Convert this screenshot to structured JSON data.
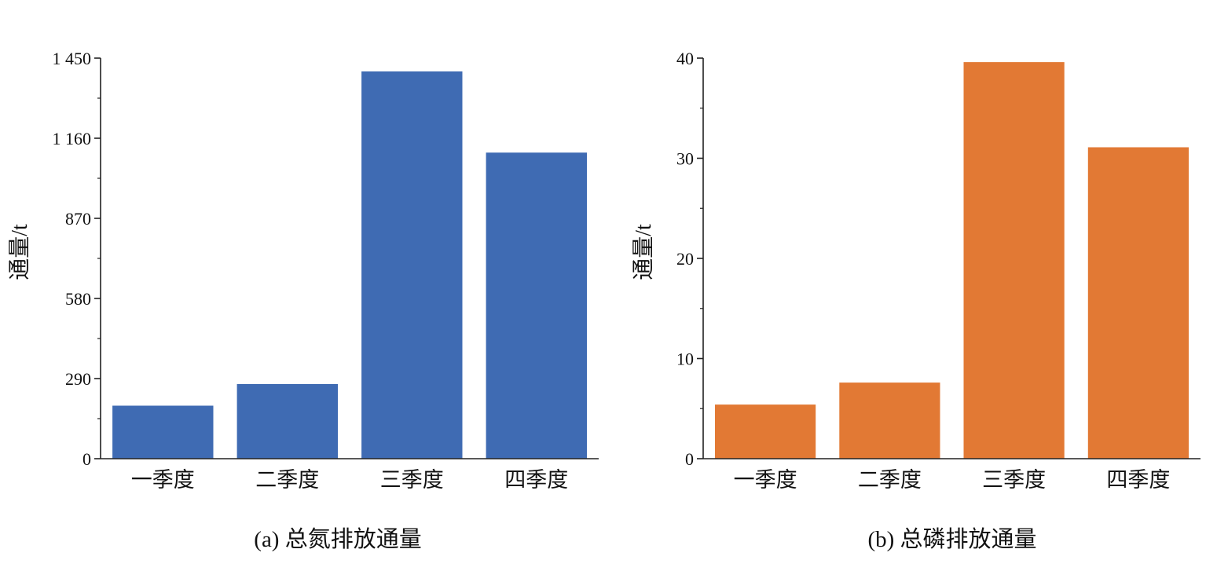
{
  "chart_data": [
    {
      "type": "bar",
      "title": "(a) 总氮排放通量",
      "ylabel": "通量/t",
      "xlabel": "",
      "categories": [
        "一季度",
        "二季度",
        "三季度",
        "四季度"
      ],
      "values": [
        192,
        270,
        1402,
        1108
      ],
      "ylim": [
        0,
        1450
      ],
      "yticks": [
        0,
        290,
        580,
        870,
        1160,
        1450
      ],
      "ytick_labels": [
        "0",
        "290",
        "580",
        "870",
        "1 160",
        "1 450"
      ],
      "color": "#3f6bb3",
      "grid": false,
      "legend": "none"
    },
    {
      "type": "bar",
      "title": "(b) 总磷排放通量",
      "ylabel": "通量/t",
      "xlabel": "",
      "categories": [
        "一季度",
        "二季度",
        "三季度",
        "四季度"
      ],
      "values": [
        5.4,
        7.6,
        39.6,
        31.1
      ],
      "ylim": [
        0,
        40
      ],
      "yticks": [
        0,
        10,
        20,
        30,
        40
      ],
      "ytick_labels": [
        "0",
        "10",
        "20",
        "30",
        "40"
      ],
      "color": "#e27934",
      "grid": false,
      "legend": "none"
    }
  ]
}
